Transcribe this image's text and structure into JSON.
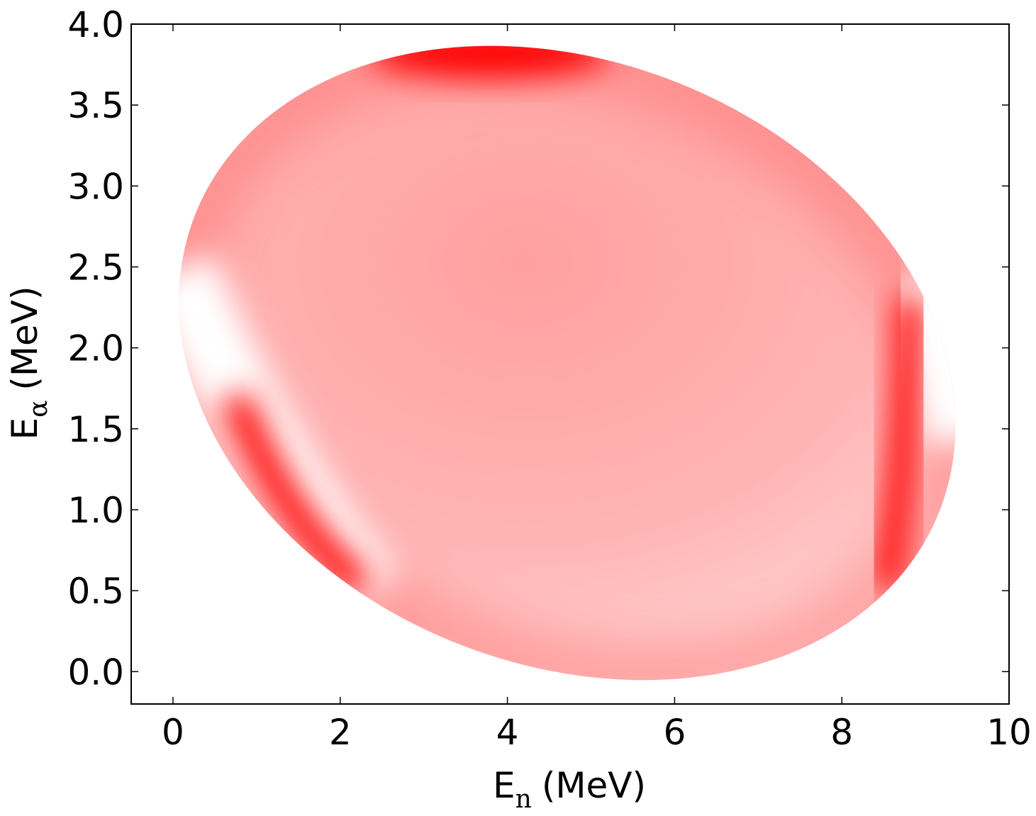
{
  "chart_data": {
    "type": "density",
    "xlabel": "E",
    "xlabel_sub": "n",
    "xlabel_unit": "(MeV)",
    "ylabel": "E",
    "ylabel_sub": "α",
    "ylabel_unit": "(MeV)",
    "xlim": [
      -0.5,
      10
    ],
    "ylim": [
      -0.2,
      4.0
    ],
    "xticks": [
      0,
      2,
      4,
      6,
      8,
      10
    ],
    "yticks": [
      {
        "value": 0,
        "label": "0.0"
      },
      {
        "value": 0.5,
        "label": "0.5"
      },
      {
        "value": 1,
        "label": "1.0"
      },
      {
        "value": 1.5,
        "label": "1.5"
      },
      {
        "value": 2,
        "label": "2.0"
      },
      {
        "value": 2.5,
        "label": "2.5"
      },
      {
        "value": 3,
        "label": "3.0"
      },
      {
        "value": 3.5,
        "label": "3.5"
      },
      {
        "value": 4,
        "label": "4.0"
      }
    ],
    "color": "#ff0000"
  }
}
